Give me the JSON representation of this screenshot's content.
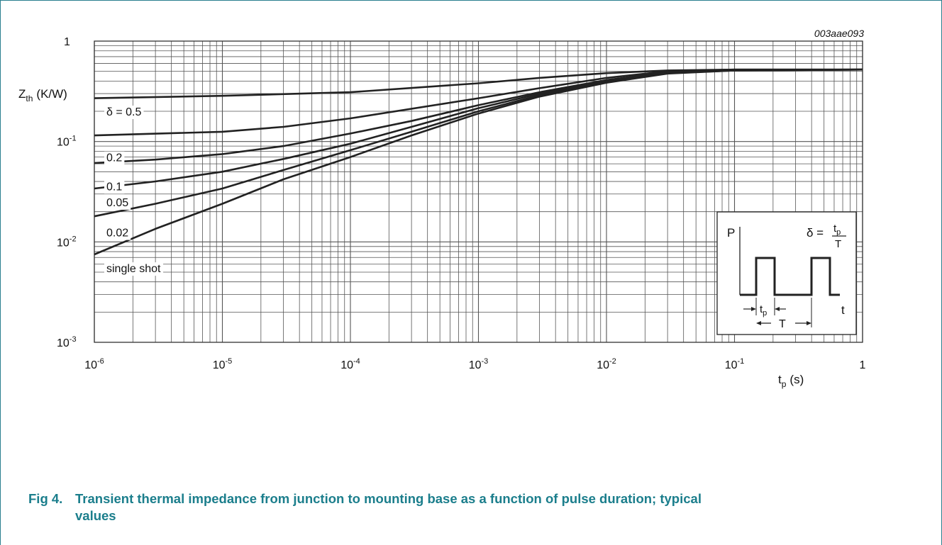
{
  "chart_data": {
    "type": "line",
    "code": "003aae093",
    "ylabel_main": "Z",
    "ylabel_sub": "th",
    "ylabel_unit": "(K/W)",
    "xlabel_main": "t",
    "xlabel_sub": "p",
    "xlabel_unit": "(s)",
    "x_scale": "log",
    "y_scale": "log",
    "xlim": [
      1e-06,
      1
    ],
    "ylim": [
      0.001,
      1
    ],
    "x_ticks": [
      {
        "value": 1e-06,
        "base": "10",
        "exp": "-6"
      },
      {
        "value": 1e-05,
        "base": "10",
        "exp": "-5"
      },
      {
        "value": 0.0001,
        "base": "10",
        "exp": "-4"
      },
      {
        "value": 0.001,
        "base": "10",
        "exp": "-3"
      },
      {
        "value": 0.01,
        "base": "10",
        "exp": "-2"
      },
      {
        "value": 0.1,
        "base": "10",
        "exp": "-1"
      },
      {
        "value": 1,
        "base": "1",
        "exp": ""
      }
    ],
    "y_ticks": [
      {
        "value": 1,
        "base": "1",
        "exp": ""
      },
      {
        "value": 0.1,
        "base": "10",
        "exp": "-1"
      },
      {
        "value": 0.01,
        "base": "10",
        "exp": "-2"
      },
      {
        "value": 0.001,
        "base": "10",
        "exp": "-3"
      }
    ],
    "grid": true,
    "series": [
      {
        "name": "δ = 0.5",
        "label_at": 0.2,
        "points": [
          [
            1e-06,
            0.27
          ],
          [
            1e-05,
            0.285
          ],
          [
            0.0001,
            0.31
          ],
          [
            0.001,
            0.38
          ],
          [
            0.003,
            0.43
          ],
          [
            0.01,
            0.48
          ],
          [
            0.03,
            0.51
          ],
          [
            0.1,
            0.52
          ],
          [
            1,
            0.52
          ]
        ]
      },
      {
        "name": "0.2",
        "label_at": 0.07,
        "points": [
          [
            1e-06,
            0.115
          ],
          [
            1e-05,
            0.125
          ],
          [
            3e-05,
            0.14
          ],
          [
            0.0001,
            0.17
          ],
          [
            0.001,
            0.27
          ],
          [
            0.003,
            0.34
          ],
          [
            0.01,
            0.43
          ],
          [
            0.03,
            0.5
          ],
          [
            0.1,
            0.52
          ],
          [
            1,
            0.52
          ]
        ]
      },
      {
        "name": "0.1",
        "label_at": 0.036,
        "points": [
          [
            1e-06,
            0.061
          ],
          [
            3e-06,
            0.066
          ],
          [
            1e-05,
            0.075
          ],
          [
            3e-05,
            0.09
          ],
          [
            0.0001,
            0.12
          ],
          [
            0.0003,
            0.16
          ],
          [
            0.001,
            0.23
          ],
          [
            0.003,
            0.31
          ],
          [
            0.01,
            0.41
          ],
          [
            0.03,
            0.49
          ],
          [
            0.1,
            0.515
          ],
          [
            1,
            0.52
          ]
        ]
      },
      {
        "name": "0.05",
        "label_at": 0.025,
        "points": [
          [
            1e-06,
            0.034
          ],
          [
            3e-06,
            0.04
          ],
          [
            1e-05,
            0.05
          ],
          [
            3e-05,
            0.067
          ],
          [
            0.0001,
            0.095
          ],
          [
            0.0003,
            0.14
          ],
          [
            0.001,
            0.215
          ],
          [
            0.003,
            0.3
          ],
          [
            0.01,
            0.4
          ],
          [
            0.03,
            0.485
          ],
          [
            0.1,
            0.515
          ],
          [
            1,
            0.52
          ]
        ]
      },
      {
        "name": "0.02",
        "label_at": 0.0125,
        "points": [
          [
            1e-06,
            0.018
          ],
          [
            3e-06,
            0.024
          ],
          [
            1e-05,
            0.034
          ],
          [
            3e-05,
            0.052
          ],
          [
            0.0001,
            0.082
          ],
          [
            0.0003,
            0.125
          ],
          [
            0.001,
            0.2
          ],
          [
            0.003,
            0.29
          ],
          [
            0.01,
            0.39
          ],
          [
            0.03,
            0.48
          ],
          [
            0.1,
            0.51
          ],
          [
            1,
            0.52
          ]
        ]
      },
      {
        "name": "single shot",
        "label_at": 0.0055,
        "points": [
          [
            1e-06,
            0.0075
          ],
          [
            3e-06,
            0.0135
          ],
          [
            1e-05,
            0.024
          ],
          [
            3e-05,
            0.042
          ],
          [
            0.0001,
            0.07
          ],
          [
            0.0003,
            0.115
          ],
          [
            0.001,
            0.19
          ],
          [
            0.003,
            0.28
          ],
          [
            0.01,
            0.385
          ],
          [
            0.03,
            0.475
          ],
          [
            0.1,
            0.51
          ],
          [
            1,
            0.52
          ]
        ]
      }
    ],
    "inset": {
      "p_label": "P",
      "t_label": "t",
      "delta": "δ =",
      "tp_main": "t",
      "tp_sub": "p",
      "T_label": "T"
    }
  },
  "caption": {
    "fig_label": "Fig 4.",
    "line1": "Transient thermal impedance from junction to mounting base as a function of pulse duration; typical",
    "line2": "values"
  },
  "colors": {
    "line": "#222222",
    "grid": "#555555",
    "caption": "#1b7e8c",
    "frame": "#2a7f8f"
  }
}
